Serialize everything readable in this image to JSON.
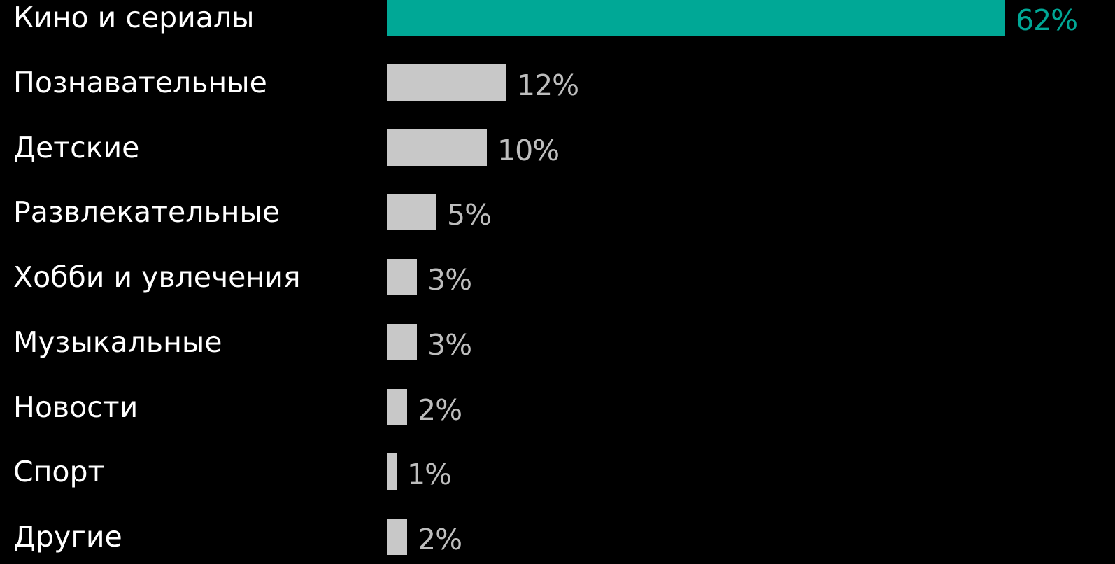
{
  "chart_data": {
    "type": "bar",
    "orientation": "horizontal",
    "categories": [
      "Кино и сериалы",
      "Познавательные",
      "Детские",
      "Развлекательные",
      "Хобби и увлечения",
      "Музыкальные",
      "Новости",
      "Спорт",
      "Другие"
    ],
    "values": [
      62,
      12,
      10,
      5,
      3,
      3,
      2,
      1,
      2
    ],
    "value_labels": [
      "62%",
      "12%",
      "10%",
      "5%",
      "3%",
      "3%",
      "2%",
      "1%",
      "2%"
    ],
    "highlight_index": 0,
    "grid": false,
    "legend": "none"
  },
  "colors": {
    "background": "#000000",
    "highlight_bar": "#00a896",
    "default_bar": "#c8c8c8",
    "highlight_label": "#00a896",
    "default_label": "#bdbdbd",
    "category_text": "#ffffff"
  }
}
